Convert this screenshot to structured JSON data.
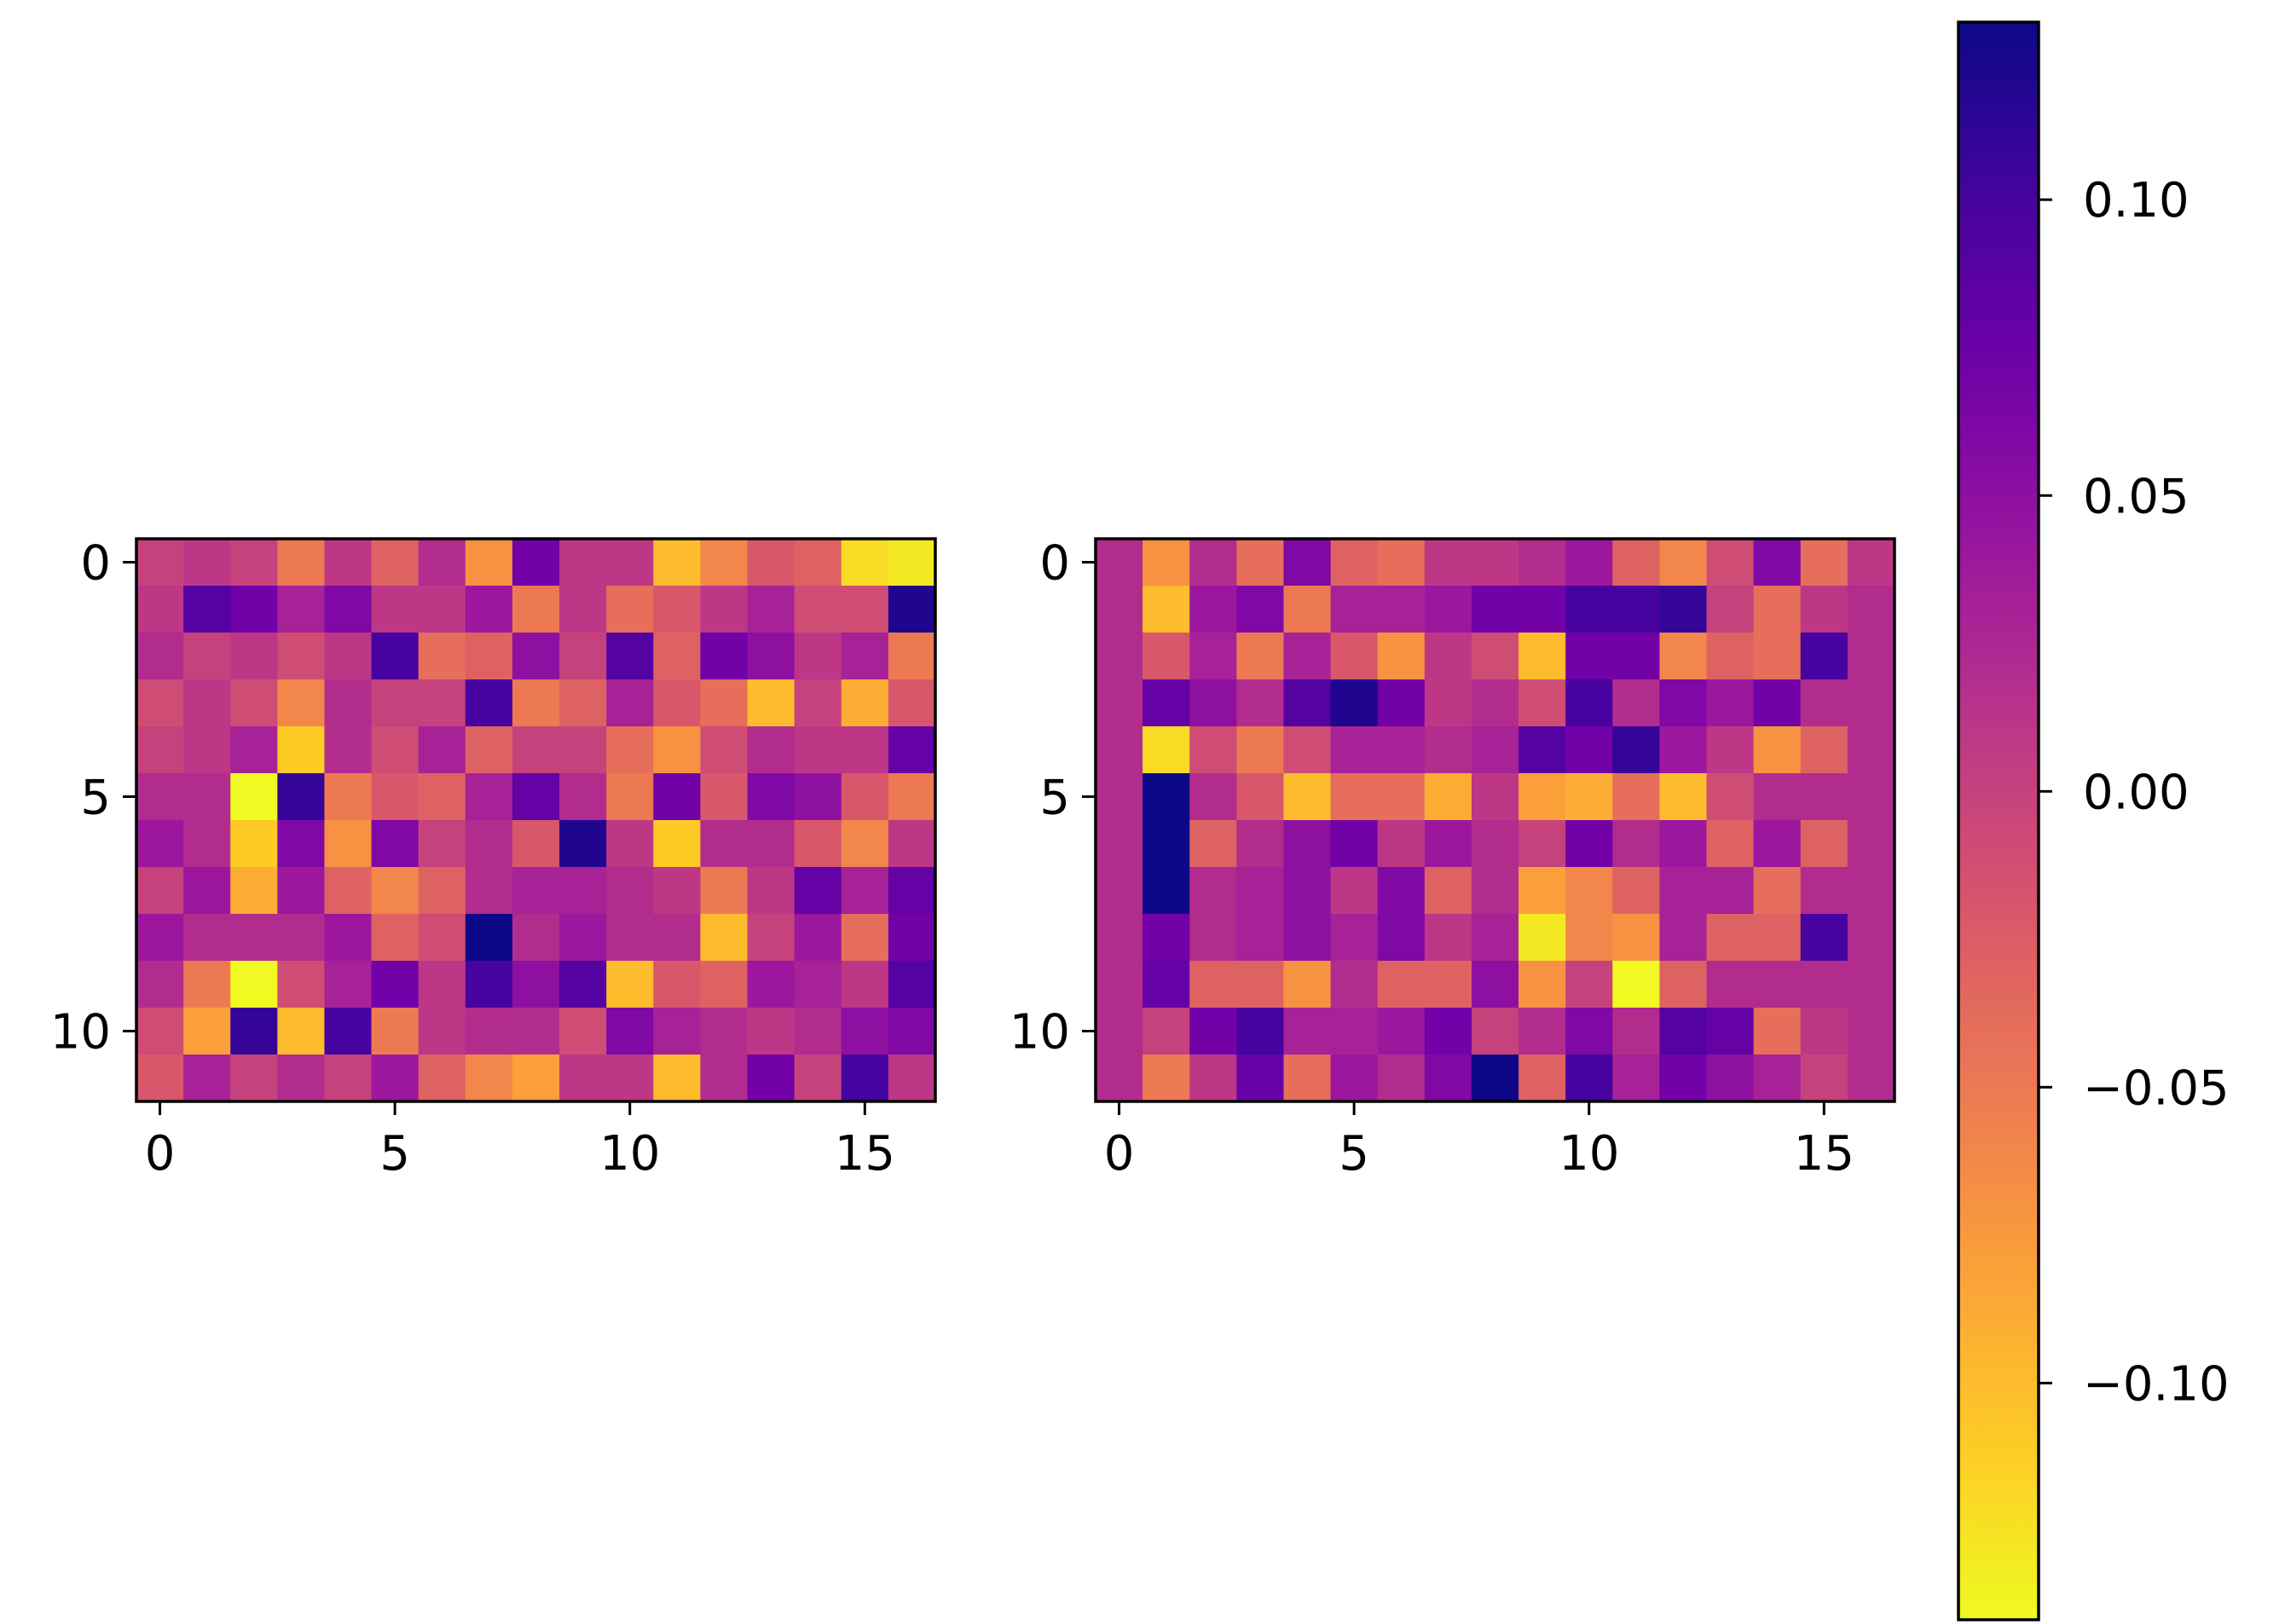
{
  "chart_data": [
    {
      "type": "heatmap",
      "title": "",
      "xlabel": "",
      "ylabel": "",
      "rows": 12,
      "cols": 17,
      "xticks": [
        0,
        5,
        10,
        15
      ],
      "yticks": [
        0,
        5,
        10
      ],
      "x_tick_labels": [
        "0",
        "5",
        "10",
        "15"
      ],
      "y_tick_labels": [
        "0",
        "5",
        "10"
      ],
      "values": [
        [
          0.0,
          0.01,
          0.0,
          -0.05,
          0.01,
          -0.03,
          0.02,
          -0.07,
          0.07,
          0.01,
          0.01,
          -0.1,
          -0.06,
          -0.02,
          -0.03,
          -0.12,
          -0.13
        ],
        [
          0.01,
          0.09,
          0.07,
          0.03,
          0.06,
          0.01,
          0.01,
          0.04,
          -0.05,
          0.01,
          -0.04,
          -0.02,
          0.01,
          0.03,
          -0.01,
          -0.01,
          0.12
        ],
        [
          0.02,
          0.0,
          0.01,
          -0.01,
          0.01,
          0.1,
          -0.04,
          -0.03,
          0.05,
          0.0,
          0.09,
          -0.03,
          0.07,
          0.05,
          0.01,
          0.03,
          -0.05
        ],
        [
          -0.01,
          0.01,
          -0.01,
          -0.06,
          0.02,
          0.0,
          0.0,
          0.1,
          -0.05,
          -0.03,
          0.03,
          -0.02,
          -0.04,
          -0.1,
          0.0,
          -0.09,
          -0.02
        ],
        [
          0.0,
          0.01,
          0.03,
          -0.11,
          0.02,
          -0.01,
          0.03,
          -0.03,
          0.0,
          0.0,
          -0.04,
          -0.07,
          -0.01,
          0.02,
          0.01,
          0.01,
          0.08
        ],
        [
          0.02,
          0.02,
          -0.14,
          0.11,
          -0.05,
          -0.02,
          -0.03,
          0.03,
          0.08,
          0.02,
          -0.05,
          0.07,
          -0.02,
          0.06,
          0.05,
          -0.02,
          -0.05
        ],
        [
          0.04,
          0.02,
          -0.11,
          0.06,
          -0.07,
          0.06,
          0.0,
          0.02,
          -0.02,
          0.12,
          0.01,
          -0.11,
          0.02,
          0.02,
          -0.02,
          -0.06,
          0.01
        ],
        [
          0.0,
          0.04,
          -0.09,
          0.04,
          -0.03,
          -0.06,
          -0.03,
          0.02,
          0.03,
          0.03,
          0.02,
          0.01,
          -0.05,
          0.01,
          0.08,
          0.03,
          0.08
        ],
        [
          0.04,
          0.02,
          0.02,
          0.02,
          0.04,
          -0.03,
          -0.01,
          0.13,
          0.02,
          0.04,
          0.02,
          0.02,
          -0.1,
          0.0,
          0.04,
          -0.04,
          0.07
        ],
        [
          0.02,
          -0.05,
          -0.14,
          -0.01,
          0.03,
          0.07,
          0.01,
          0.1,
          0.05,
          0.09,
          -0.1,
          -0.02,
          -0.03,
          0.04,
          0.03,
          0.01,
          0.09
        ],
        [
          -0.01,
          -0.08,
          0.11,
          -0.1,
          0.1,
          -0.05,
          0.01,
          0.02,
          0.02,
          -0.01,
          0.06,
          0.03,
          0.02,
          0.01,
          0.02,
          0.05,
          0.06
        ],
        [
          -0.02,
          0.03,
          0.0,
          0.02,
          0.0,
          0.04,
          -0.03,
          -0.06,
          -0.08,
          0.01,
          0.01,
          -0.1,
          0.02,
          0.07,
          0.0,
          0.1,
          0.01
        ]
      ]
    },
    {
      "type": "heatmap",
      "title": "",
      "xlabel": "",
      "ylabel": "",
      "rows": 12,
      "cols": 17,
      "xticks": [
        0,
        5,
        10,
        15
      ],
      "yticks": [
        0,
        5,
        10
      ],
      "x_tick_labels": [
        "0",
        "5",
        "10",
        "15"
      ],
      "y_tick_labels": [
        "0",
        "5",
        "10"
      ],
      "values": [
        [
          0.02,
          -0.07,
          0.02,
          -0.04,
          0.06,
          -0.03,
          -0.04,
          0.01,
          0.01,
          0.02,
          0.04,
          -0.03,
          -0.06,
          -0.01,
          0.06,
          -0.04,
          0.01
        ],
        [
          0.02,
          -0.1,
          0.04,
          0.06,
          -0.05,
          0.03,
          0.03,
          0.04,
          0.07,
          0.07,
          0.1,
          0.1,
          0.11,
          0.0,
          -0.04,
          0.01,
          0.02
        ],
        [
          0.02,
          -0.02,
          0.03,
          -0.05,
          0.03,
          -0.02,
          -0.07,
          0.01,
          -0.01,
          -0.1,
          0.07,
          0.07,
          -0.06,
          -0.03,
          -0.04,
          0.1,
          0.02
        ],
        [
          0.02,
          0.08,
          0.05,
          0.02,
          0.09,
          0.12,
          0.07,
          0.01,
          0.02,
          -0.01,
          0.1,
          0.02,
          0.06,
          0.04,
          0.07,
          0.02,
          0.02
        ],
        [
          0.02,
          -0.12,
          -0.01,
          -0.05,
          -0.01,
          0.03,
          0.03,
          0.02,
          0.03,
          0.09,
          0.07,
          0.11,
          0.04,
          0.01,
          -0.07,
          -0.03,
          0.02
        ],
        [
          0.02,
          0.13,
          0.02,
          -0.02,
          -0.1,
          -0.04,
          -0.04,
          -0.09,
          0.01,
          -0.08,
          -0.09,
          -0.04,
          -0.1,
          -0.01,
          0.02,
          0.02,
          0.02
        ],
        [
          0.02,
          0.13,
          -0.03,
          0.02,
          0.05,
          0.07,
          0.01,
          0.04,
          0.02,
          0.0,
          0.07,
          0.02,
          0.04,
          -0.03,
          0.04,
          -0.03,
          0.02
        ],
        [
          0.02,
          0.13,
          0.02,
          0.03,
          0.05,
          0.01,
          0.06,
          -0.03,
          0.02,
          -0.08,
          -0.06,
          -0.03,
          0.03,
          0.03,
          -0.04,
          0.02,
          0.02
        ],
        [
          0.02,
          0.07,
          0.02,
          0.03,
          0.05,
          0.03,
          0.06,
          0.01,
          0.03,
          -0.13,
          -0.06,
          -0.07,
          0.03,
          -0.03,
          -0.03,
          0.1,
          0.02
        ],
        [
          0.02,
          0.08,
          -0.03,
          -0.03,
          -0.07,
          0.02,
          -0.03,
          -0.03,
          0.05,
          -0.07,
          0.0,
          -0.14,
          -0.03,
          0.02,
          0.02,
          0.02,
          0.02
        ],
        [
          0.02,
          0.0,
          0.07,
          0.1,
          0.03,
          0.03,
          0.04,
          0.07,
          0.0,
          0.02,
          0.06,
          0.02,
          0.09,
          0.08,
          -0.04,
          0.01,
          0.02
        ],
        [
          0.02,
          -0.05,
          0.01,
          0.08,
          -0.04,
          0.04,
          0.02,
          0.06,
          0.13,
          -0.03,
          0.1,
          0.03,
          0.07,
          0.05,
          0.03,
          0.0,
          0.02
        ]
      ]
    },
    {
      "type": "colorbar",
      "colormap": "plasma_r",
      "vmin": -0.14,
      "vmax": 0.13,
      "ticks": [
        0.1,
        0.05,
        0.0,
        -0.05,
        -0.1
      ],
      "tick_labels": [
        "0.10",
        "0.05",
        "0.00",
        "−0.05",
        "−0.10"
      ]
    }
  ]
}
